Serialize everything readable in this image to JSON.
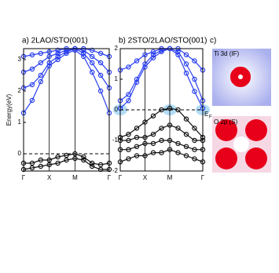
{
  "chart_data": [
    {
      "type": "line",
      "title": "a) 2LAO/STO(001)",
      "y_label": "Energy(eV)",
      "categories": [
        "Γ",
        null,
        null,
        "X",
        null,
        null,
        "M",
        null,
        null,
        null,
        "Γ"
      ],
      "ylim": [
        -0.55,
        3.35
      ],
      "yticks": [
        0,
        1,
        2,
        3
      ],
      "fermi_level": 0,
      "series": [
        {
          "color": "#2a3ff0",
          "values": [
            1.3,
            1.7,
            2.3,
            2.8,
            3.0,
            3.2,
            3.3,
            3.1,
            2.6,
            2.0,
            1.3
          ]
        },
        {
          "color": "#2a3ff0",
          "values": [
            2.1,
            2.2,
            2.5,
            2.9,
            3.1,
            3.25,
            3.35,
            3.2,
            2.9,
            2.5,
            2.1
          ]
        },
        {
          "color": "#2a3ff0",
          "values": [
            2.6,
            2.7,
            2.9,
            3.1,
            3.2,
            3.3,
            3.35,
            3.3,
            3.1,
            2.9,
            2.6
          ]
        },
        {
          "color": "#2a3ff0",
          "values": [
            3.1,
            3.15,
            3.2,
            3.25,
            3.3,
            3.35,
            3.35,
            3.35,
            3.3,
            3.2,
            3.1
          ]
        },
        {
          "color": "#111111",
          "values": [
            -0.3,
            -0.3,
            -0.2,
            -0.2,
            -0.1,
            -0.05,
            0.0,
            -0.1,
            -0.3,
            -0.35,
            -0.3
          ]
        },
        {
          "color": "#111111",
          "values": [
            -0.5,
            -0.45,
            -0.4,
            -0.35,
            -0.3,
            -0.2,
            -0.15,
            -0.2,
            -0.4,
            -0.5,
            -0.5
          ]
        }
      ]
    },
    {
      "type": "line",
      "title": "b) 2STO/2LAO/STO(001)",
      "annotation": "E",
      "annotation_sub": "F",
      "categories": [
        "Γ",
        null,
        null,
        "X",
        null,
        null,
        "M",
        null,
        null,
        null,
        "Γ"
      ],
      "ylim": [
        -2,
        2
      ],
      "yticks": [
        2,
        1,
        0,
        -1,
        -2
      ],
      "fermi_level": 0,
      "series": [
        {
          "color": "#2a3ff0",
          "values": [
            0.05,
            0.3,
            0.9,
            1.4,
            1.7,
            1.9,
            2.0,
            1.8,
            1.2,
            0.6,
            0.05
          ]
        },
        {
          "color": "#2a3ff0",
          "values": [
            0.3,
            0.5,
            1.0,
            1.5,
            1.8,
            1.95,
            2.0,
            1.9,
            1.5,
            1.0,
            0.3
          ]
        },
        {
          "color": "#2a3ff0",
          "values": [
            1.3,
            1.4,
            1.6,
            1.8,
            1.9,
            2.0,
            2.0,
            2.0,
            1.8,
            1.6,
            1.3
          ]
        },
        {
          "color": "#111111",
          "values": [
            -0.9,
            -0.8,
            -0.6,
            -0.4,
            -0.2,
            0.0,
            0.05,
            0.0,
            -0.3,
            -0.6,
            -0.9
          ]
        },
        {
          "color": "#111111",
          "values": [
            -1.0,
            -1.0,
            -0.9,
            -0.9,
            -0.8,
            -0.6,
            -0.5,
            -0.6,
            -0.8,
            -1.0,
            -1.0
          ]
        },
        {
          "color": "#111111",
          "values": [
            -1.3,
            -1.3,
            -1.2,
            -1.1,
            -1.1,
            -1.0,
            -1.0,
            -1.1,
            -1.2,
            -1.3,
            -1.3
          ]
        },
        {
          "color": "#111111",
          "values": [
            -1.7,
            -1.6,
            -1.5,
            -1.5,
            -1.4,
            -1.4,
            -1.3,
            -1.4,
            -1.5,
            -1.6,
            -1.7
          ]
        }
      ]
    }
  ],
  "panel_c": {
    "label": "c)",
    "images": [
      {
        "label": "Ti 3d (IF)"
      },
      {
        "label": "O 2p (S)"
      }
    ]
  }
}
